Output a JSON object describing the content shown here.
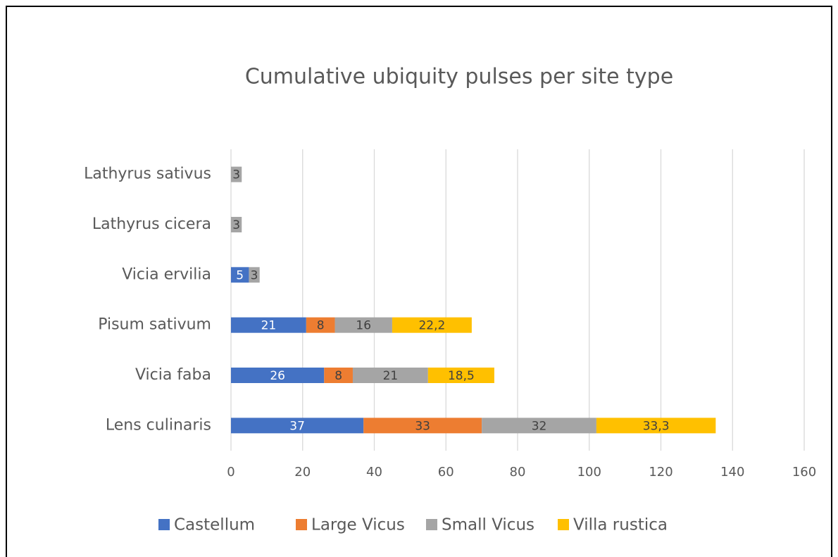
{
  "chart_data": {
    "type": "stacked-barh",
    "title": "Cumulative ubiquity pulses per site type",
    "categories": [
      "Lens culinaris",
      "Vicia faba",
      "Pisum sativum",
      "Vicia ervilia",
      "Lathyrus cicera",
      "Lathyrus sativus"
    ],
    "series": [
      {
        "name": "Castellum",
        "color": "#4472c4",
        "values": [
          37,
          26,
          21,
          5,
          null,
          null
        ]
      },
      {
        "name": "Large Vicus",
        "color": "#ed7d31",
        "values": [
          33,
          8,
          8,
          null,
          null,
          null
        ]
      },
      {
        "name": "Small Vicus",
        "color": "#a5a5a5",
        "values": [
          32,
          21,
          16,
          3,
          3,
          3
        ]
      },
      {
        "name": "Villa rustica",
        "color": "#ffc000",
        "values": [
          33.3,
          18.5,
          22.2,
          null,
          null,
          null
        ],
        "value_labels": [
          "33,3",
          "18,5",
          "22,2",
          null,
          null,
          null
        ]
      }
    ],
    "xlim": [
      0,
      160
    ],
    "xticks": [
      0,
      20,
      40,
      60,
      80,
      100,
      120,
      140,
      160
    ],
    "grid": true,
    "legend": "bottom"
  }
}
